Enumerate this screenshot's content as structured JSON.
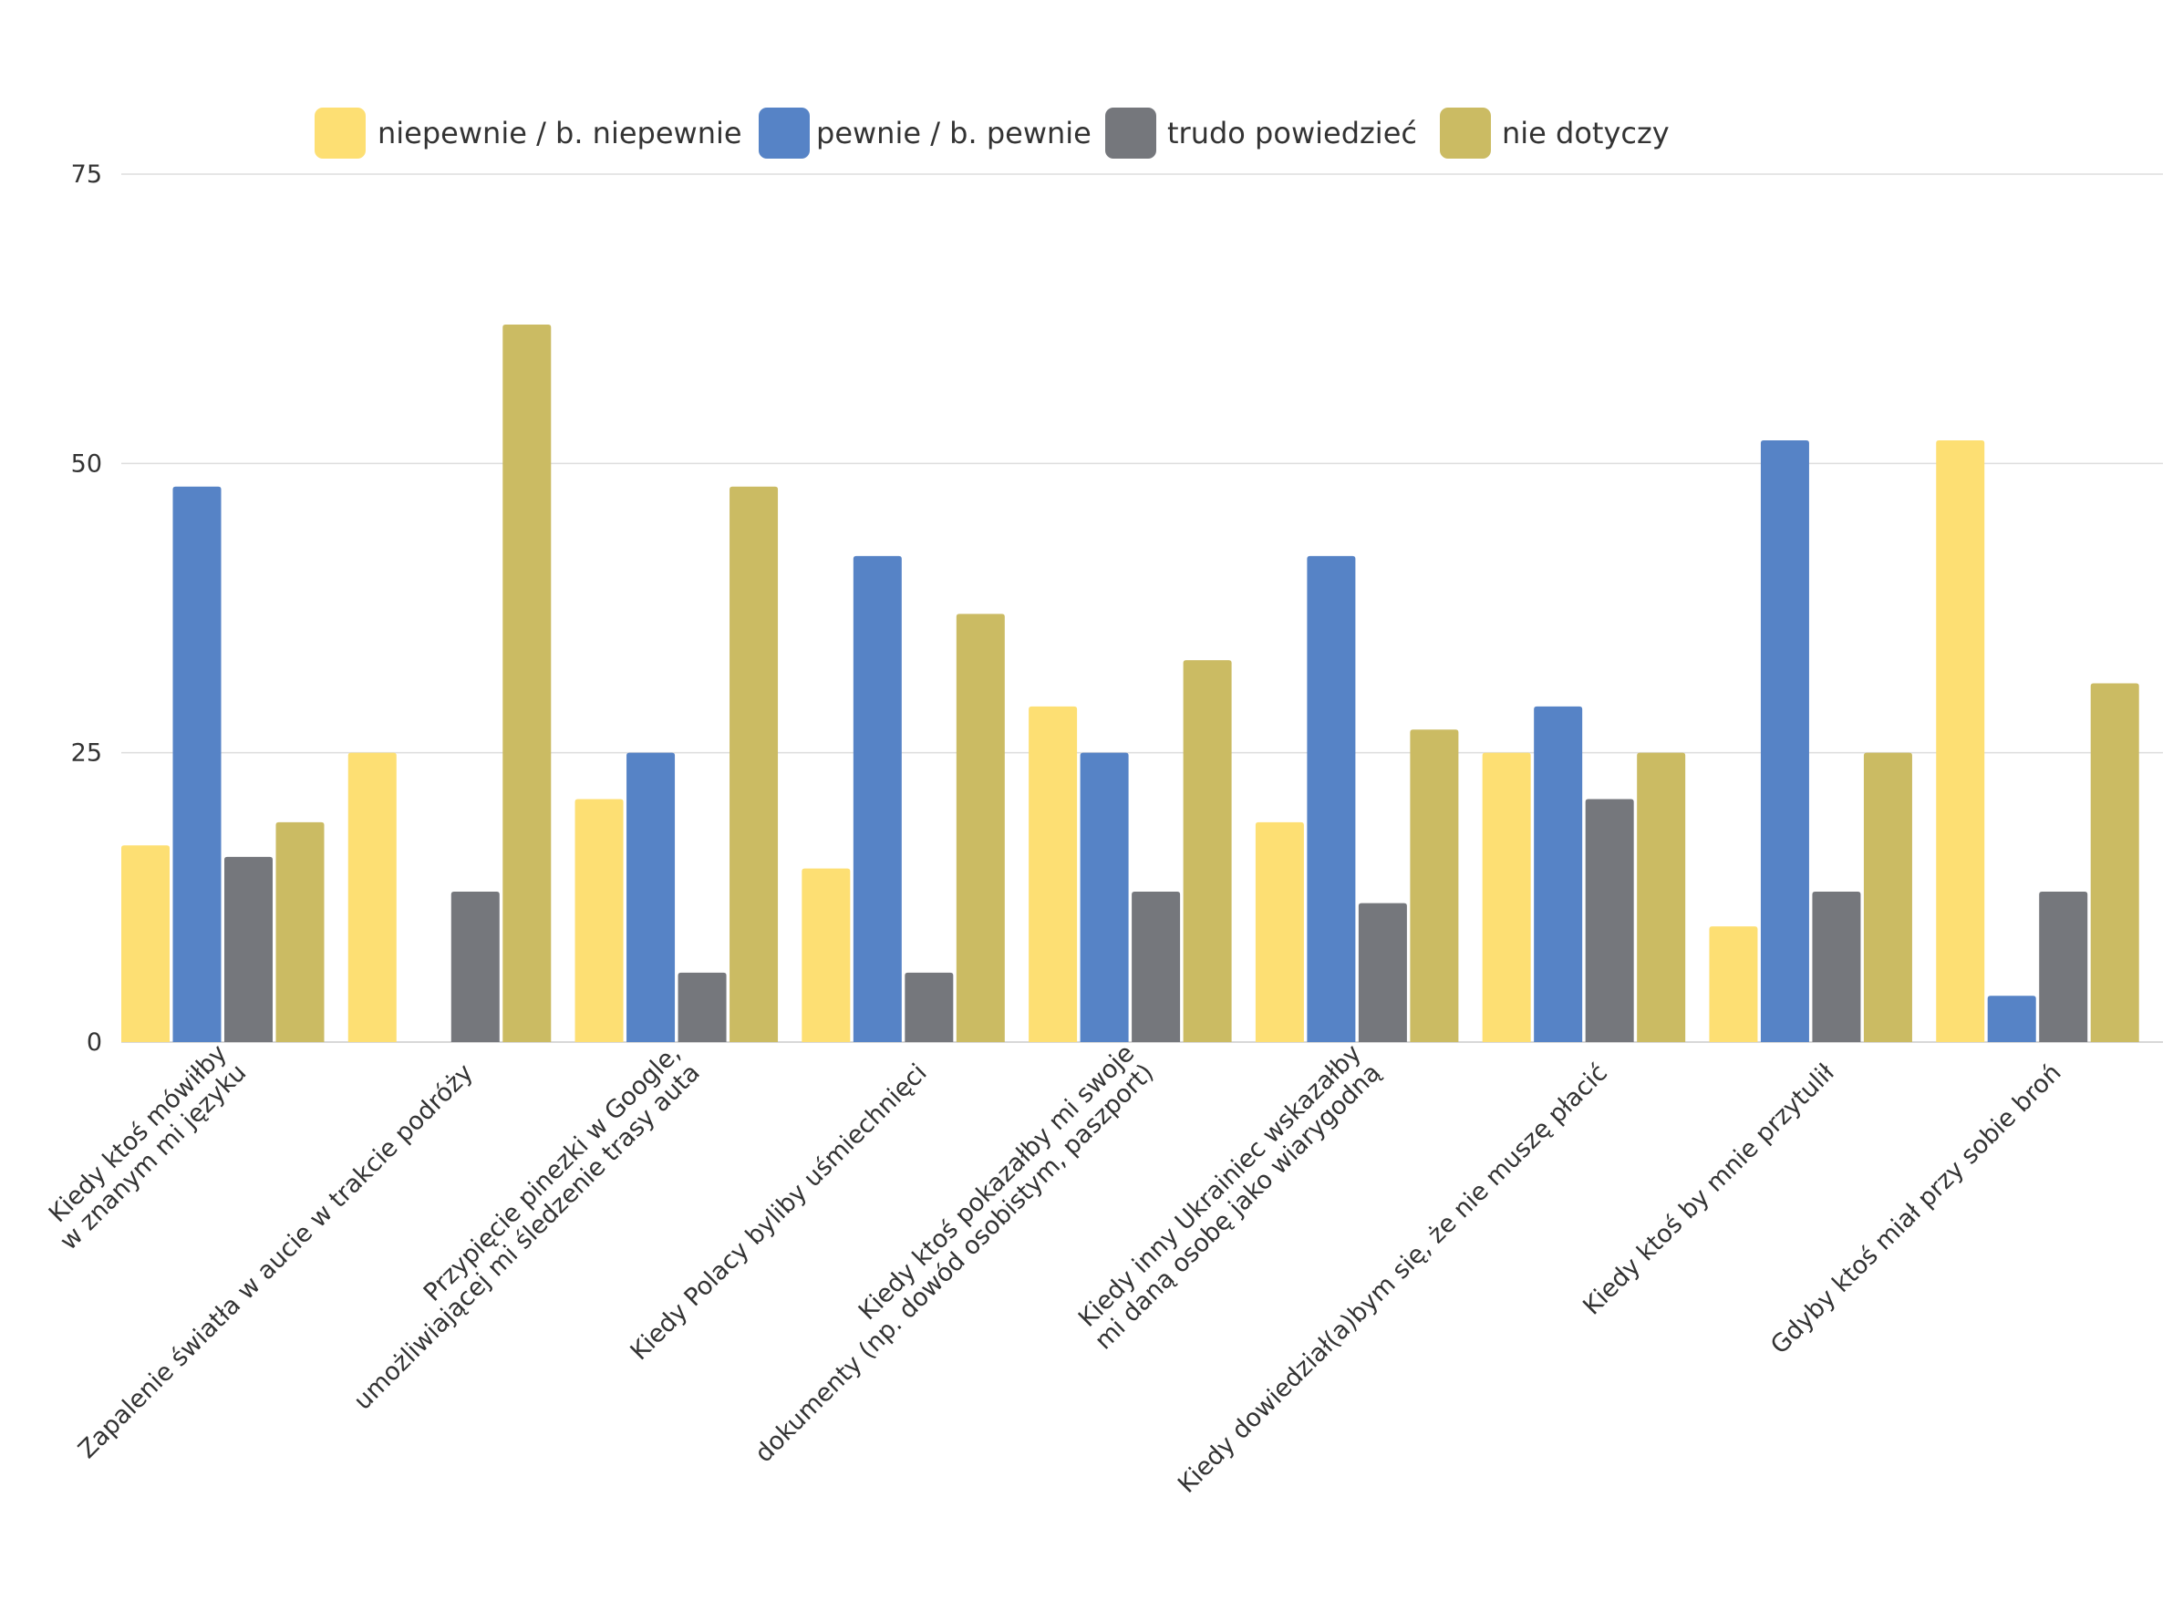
{
  "chart_data": {
    "type": "bar",
    "title": "",
    "xlabel": "",
    "ylabel": "",
    "ylim": [
      0,
      75
    ],
    "yticks": [
      0,
      25,
      50,
      75
    ],
    "grid": true,
    "legend_position": "top",
    "categories": [
      [
        "Kiedy ktoś mówiłby",
        "w znanym mi języku"
      ],
      [
        "Zapalenie światła w aucie w trakcie podróży"
      ],
      [
        "Przypięcie pinezki w Google,",
        "umożliwiającej mi śledzenie trasy auta"
      ],
      [
        "Kiedy Polacy byliby uśmiechnięci"
      ],
      [
        "Kiedy ktoś pokazałby mi swoje",
        "dokumenty (np. dowód osobistym, paszport)"
      ],
      [
        "Kiedy inny Ukrainiec wskazałby",
        "mi daną osobę jako wiarygodną"
      ],
      [
        "Kiedy dowiedział(a)bym się, że nie muszę płacić"
      ],
      [
        "Kiedy ktoś by mnie przytulił"
      ],
      [
        "Gdyby ktoś miał przy sobie broń"
      ]
    ],
    "series": [
      {
        "name": "niepewnie / b. niepewnie",
        "color": "#fddf73",
        "values": [
          17,
          25,
          21,
          15,
          29,
          19,
          25,
          10,
          52
        ]
      },
      {
        "name": "pewnie / b. pewnie",
        "color": "#5683c6",
        "values": [
          48,
          0,
          25,
          42,
          25,
          42,
          29,
          52,
          4
        ]
      },
      {
        "name": "trudo powiedzieć",
        "color": "#75777c",
        "values": [
          16,
          13,
          6,
          6,
          13,
          12,
          21,
          13,
          13
        ]
      },
      {
        "name": "nie dotyczy",
        "color": "#cbbb63",
        "values": [
          19,
          62,
          48,
          37,
          33,
          27,
          25,
          25,
          31
        ]
      }
    ]
  }
}
